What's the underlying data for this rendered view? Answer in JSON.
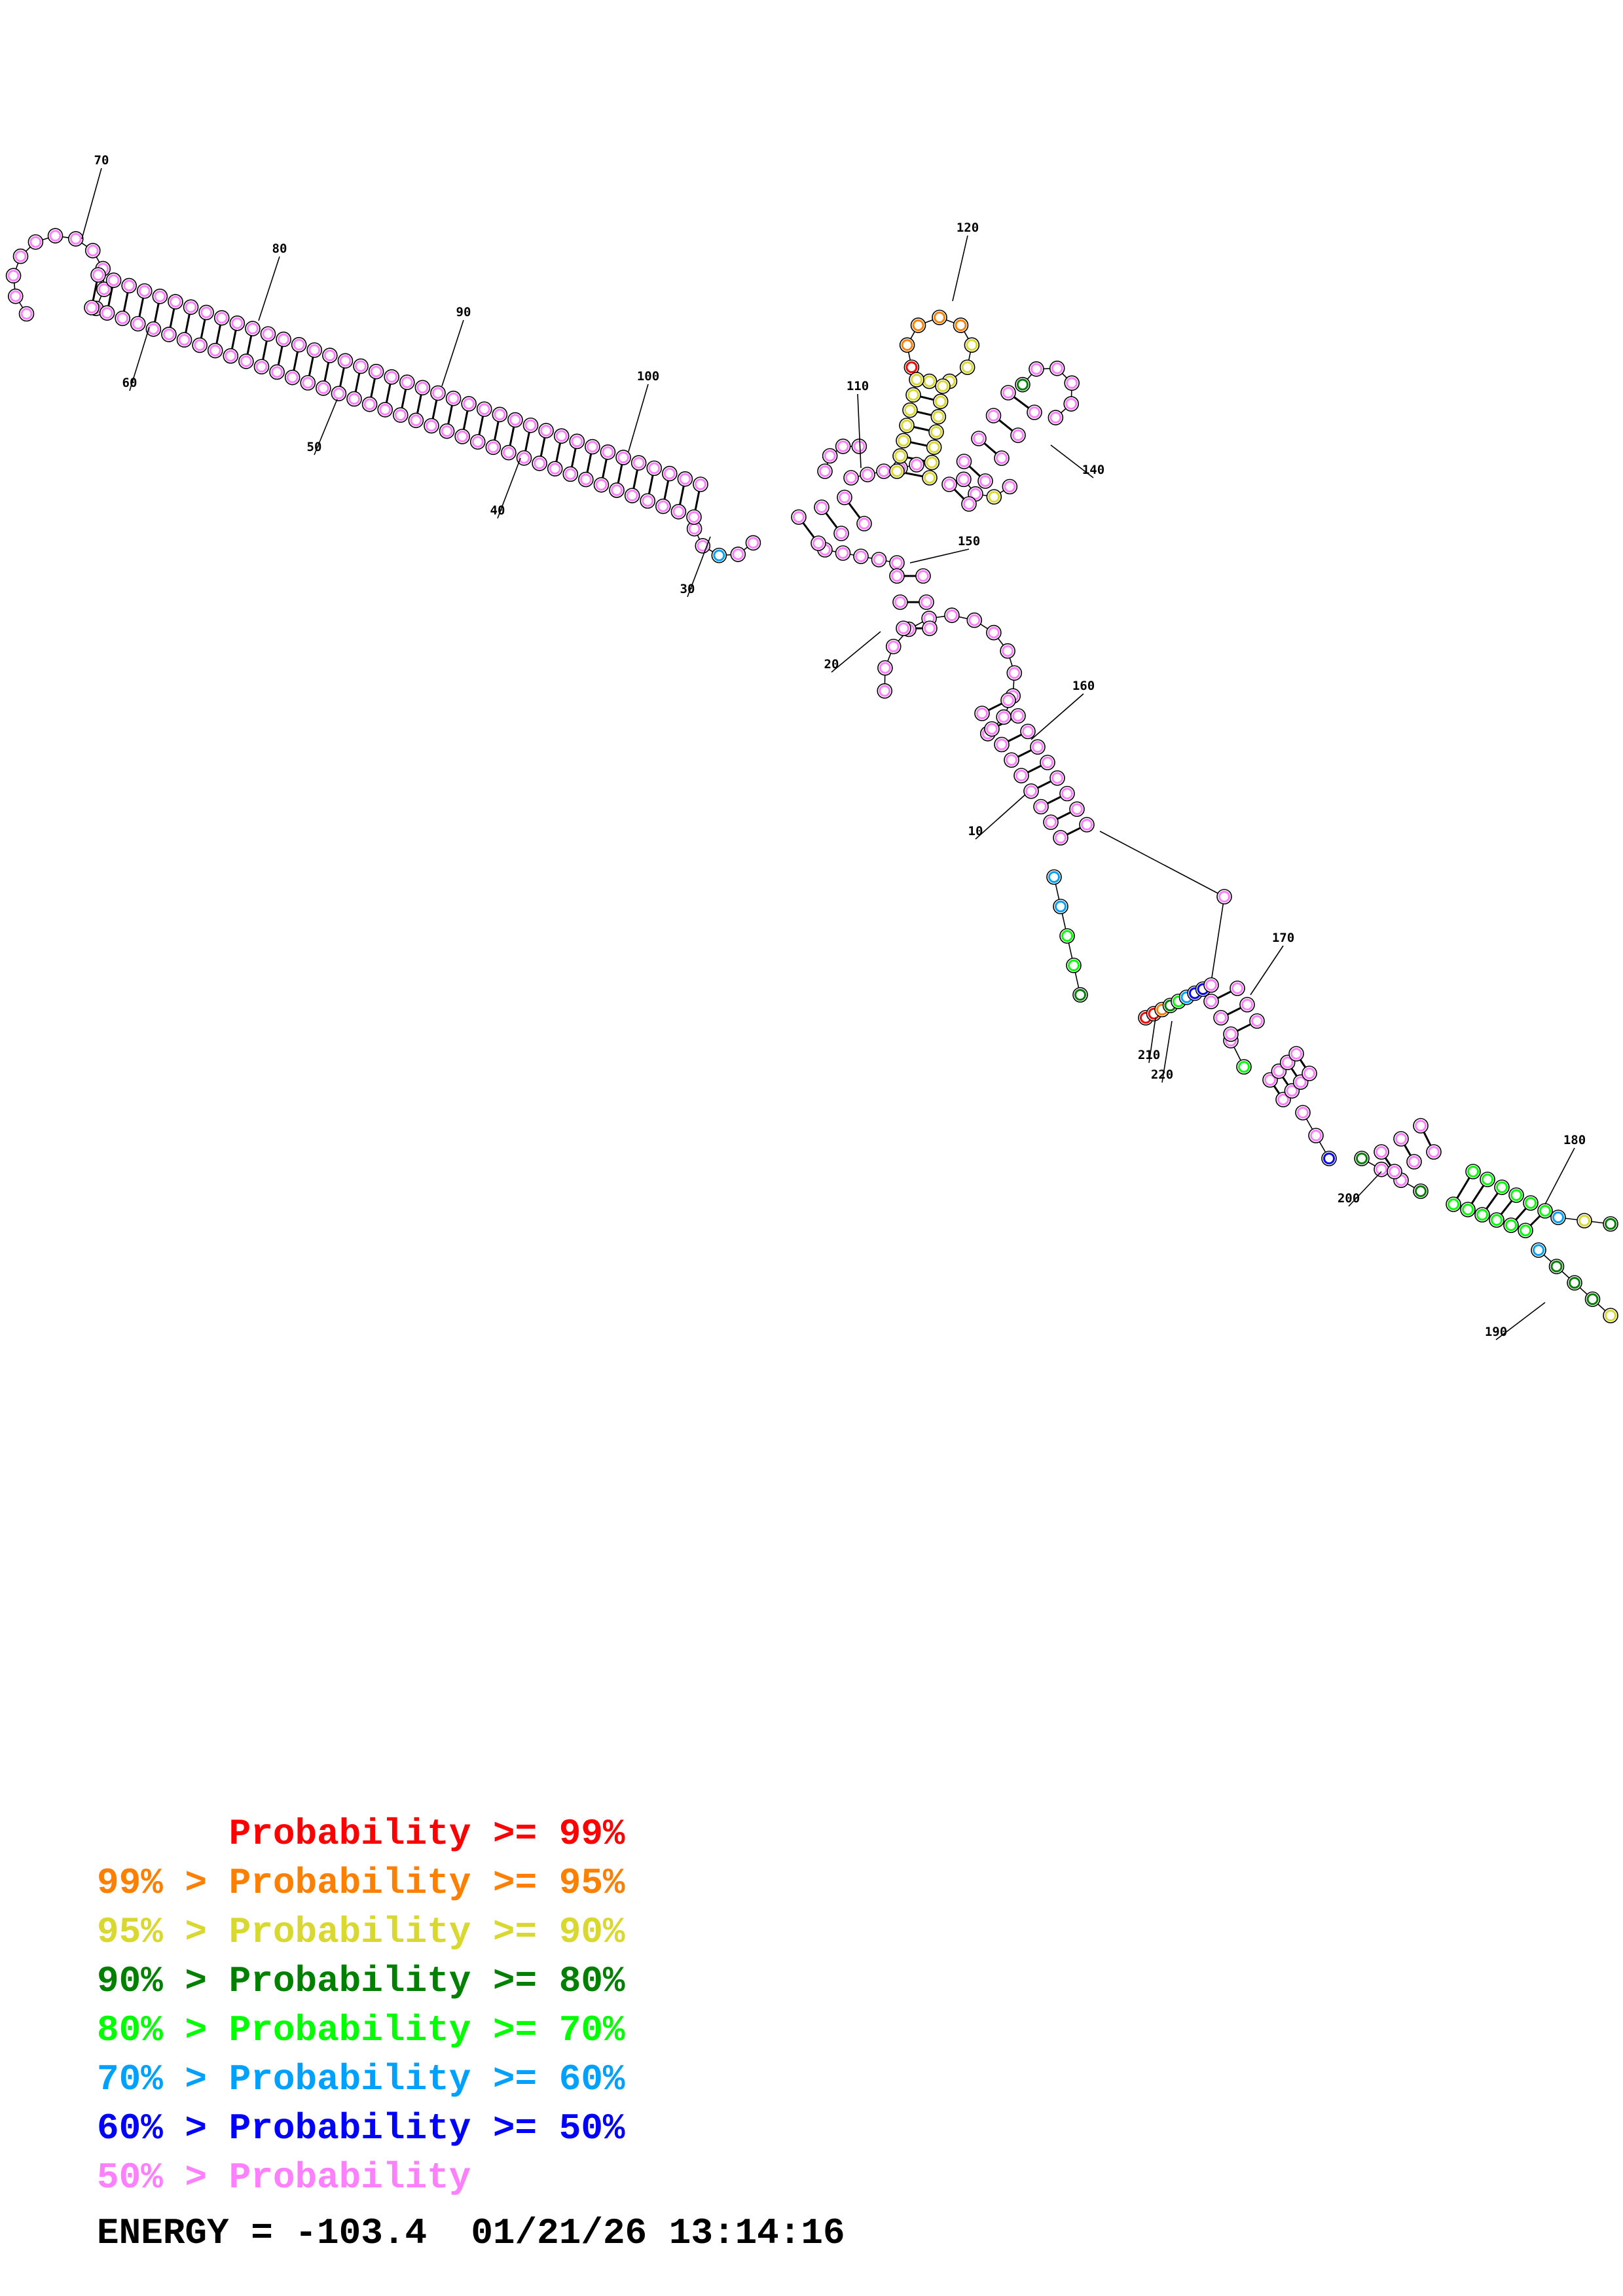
{
  "structure": {
    "position_labels": [
      "10",
      "20",
      "30",
      "40",
      "50",
      "60",
      "70",
      "80",
      "90",
      "100",
      "110",
      "120",
      "140",
      "150",
      "160",
      "170",
      "180",
      "190",
      "200",
      "210",
      "220"
    ],
    "colors": {
      "p99": "#ff0000",
      "p95": "#ff8000",
      "p90": "#d8d830",
      "p80": "#008000",
      "p70": "#00ff00",
      "p60": "#00a0ff",
      "p50": "#0000ff",
      "plt50": "#ff80ff"
    }
  },
  "legend": [
    {
      "left": "",
      "right": "Probability >= 99%",
      "color": "#ff0000"
    },
    {
      "left": "99% > ",
      "right": "Probability >= 95%",
      "color": "#ff8000"
    },
    {
      "left": "95% > ",
      "right": "Probability >= 90%",
      "color": "#d8d830"
    },
    {
      "left": "90% > ",
      "right": "Probability >= 80%",
      "color": "#008000"
    },
    {
      "left": "80% > ",
      "right": "Probability >= 70%",
      "color": "#00ff00"
    },
    {
      "left": "70% > ",
      "right": "Probability >= 60%",
      "color": "#00a0ff"
    },
    {
      "left": "60% > ",
      "right": "Probability >= 50%",
      "color": "#0000ff"
    },
    {
      "left": "50% > ",
      "right": "Probability",
      "color": "#ff80ff"
    }
  ],
  "footer": {
    "energy": "ENERGY = -103.4",
    "timestamp": "01/21/26 13:14:16"
  }
}
